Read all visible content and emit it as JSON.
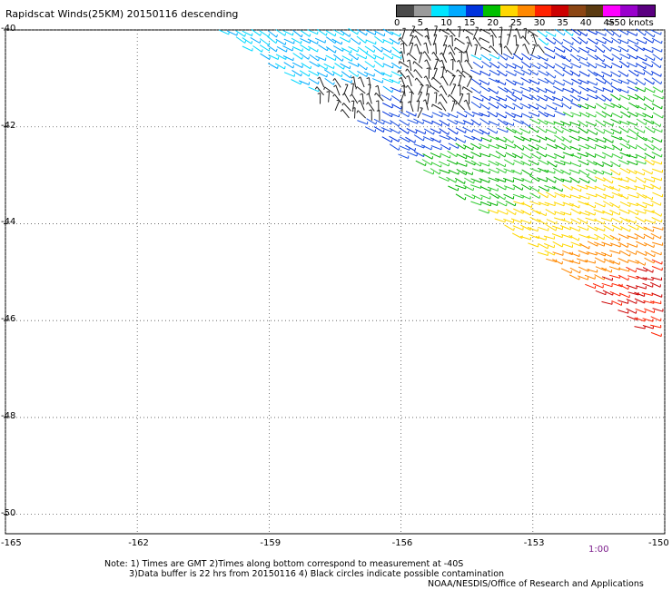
{
  "title": "Rapidscat Winds(25KM) 20150116 descending",
  "colorbar": {
    "labels": [
      "0",
      "5",
      "10",
      "15",
      "20",
      "25",
      "30",
      "35",
      "40",
      "45",
      ">50 knots"
    ],
    "colors": [
      "#4a4a4a",
      "#9a9a9a",
      "#00e5ff",
      "#00aaff",
      "#0033dd",
      "#00c000",
      "#ffd700",
      "#ff8800",
      "#ff2200",
      "#cc0000",
      "#8b4513",
      "#5a3a10",
      "#ff00ff",
      "#9900cc",
      "#5a0080"
    ]
  },
  "axes": {
    "lat_labels": [
      "-40",
      "-42",
      "-44",
      "-46",
      "-48",
      "-50"
    ],
    "lat_values": [
      -40,
      -42,
      -44,
      -46,
      -48,
      -50
    ],
    "lon_labels": [
      "-165",
      "-162",
      "-159",
      "-156",
      "-153",
      "-150"
    ],
    "lon_values": [
      -165,
      -162,
      -159,
      -156,
      -153,
      -150
    ],
    "grid": "dotted"
  },
  "pass_time": "1:00",
  "notes": {
    "line1": "Note: 1) Times are GMT 2)Times along bottom correspond to measurement at -40S",
    "line2": "3)Data buffer is 22 hrs from 20150116 4) Black circles indicate possible contamination",
    "line3": "NOAA/NESDIS/Office of Research and Applications"
  },
  "swath": {
    "edge_points": [
      [
        -160.2,
        -40.0
      ],
      [
        -157.0,
        -41.9
      ],
      [
        -150.0,
        -46.5
      ]
    ],
    "speed_bands": [
      "calm-black",
      "cyan",
      "blue",
      "green",
      "yellow",
      "orange-red"
    ]
  }
}
